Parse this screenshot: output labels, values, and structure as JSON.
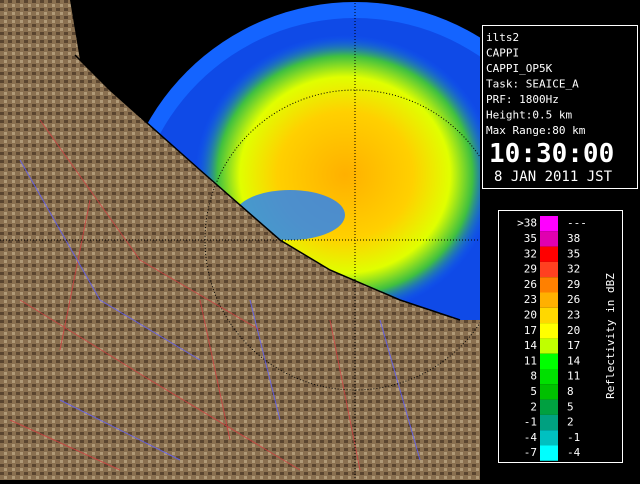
{
  "info": {
    "lines": [
      "ilts2",
      "CAPPI",
      "CAPPI_OP5K",
      "Task: SEAICE_A",
      "PRF: 1800Hz",
      "Height:0.5 km",
      "Max Range:80 km"
    ],
    "time": "10:30:00",
    "date": "8 JAN 2011 JST"
  },
  "legend": {
    "title": "Reflectivity in dBZ",
    "rows": [
      {
        "low": ">38",
        "high": "---",
        "color": "#ff00ff"
      },
      {
        "low": "35",
        "high": "38",
        "color": "#e000b0"
      },
      {
        "low": "32",
        "high": "35",
        "color": "#ff0000"
      },
      {
        "low": "29",
        "high": "32",
        "color": "#ff4020"
      },
      {
        "low": "26",
        "high": "29",
        "color": "#ff8000"
      },
      {
        "low": "23",
        "high": "26",
        "color": "#ffb000"
      },
      {
        "low": "20",
        "high": "23",
        "color": "#ffd800"
      },
      {
        "low": "17",
        "high": "20",
        "color": "#ffff00"
      },
      {
        "low": "14",
        "high": "17",
        "color": "#c0ff00"
      },
      {
        "low": "11",
        "high": "14",
        "color": "#00ff00"
      },
      {
        "low": "8",
        "high": "11",
        "color": "#00e000"
      },
      {
        "low": "5",
        "high": "8",
        "color": "#00c000"
      },
      {
        "low": "2",
        "high": "5",
        "color": "#00a040"
      },
      {
        "low": "-1",
        "high": "2",
        "color": "#00a080"
      },
      {
        "low": "-4",
        "high": "-1",
        "color": "#00c0c0"
      },
      {
        "low": "-7",
        "high": "-4",
        "color": "#00ffff"
      }
    ]
  }
}
